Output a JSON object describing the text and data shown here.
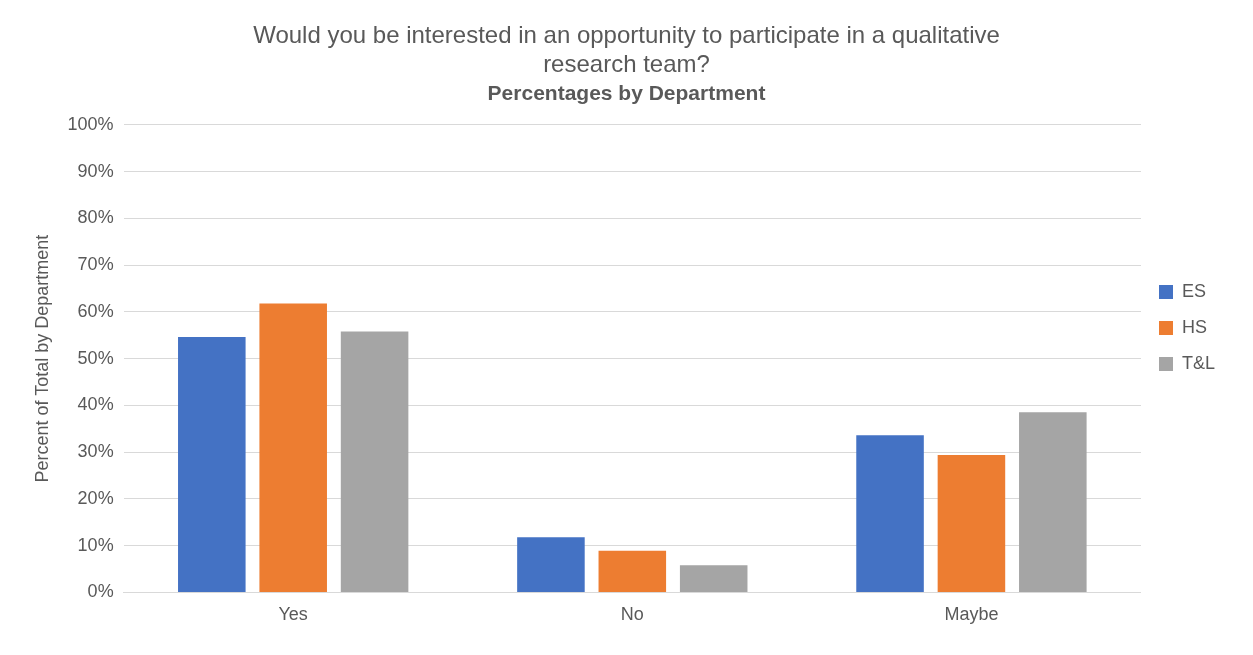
{
  "chart_data": {
    "type": "bar",
    "title": "Would you be interested in an opportunity to participate in a qualitative research team?",
    "subtitle": "Percentages by Department",
    "ylabel": "Percent of Total by Department",
    "categories": [
      "Yes",
      "No",
      "Maybe"
    ],
    "series": [
      {
        "name": "ES",
        "color": "#4472c4",
        "values": [
          54.6,
          11.8,
          33.6
        ]
      },
      {
        "name": "HS",
        "color": "#ed7d31",
        "values": [
          61.8,
          8.9,
          29.4
        ]
      },
      {
        "name": "T&L",
        "color": "#a5a5a5",
        "values": [
          55.8,
          5.8,
          38.5
        ]
      }
    ],
    "ylim": [
      0,
      100
    ],
    "yticks": [
      {
        "value": 0,
        "label": "0%"
      },
      {
        "value": 10,
        "label": "10%"
      },
      {
        "value": 20,
        "label": "20%"
      },
      {
        "value": 30,
        "label": "30%"
      },
      {
        "value": 40,
        "label": "40%"
      },
      {
        "value": 50,
        "label": "50%"
      },
      {
        "value": 60,
        "label": "60%"
      },
      {
        "value": 70,
        "label": "70%"
      },
      {
        "value": 80,
        "label": "80%"
      },
      {
        "value": 90,
        "label": "90%"
      },
      {
        "value": 100,
        "label": "100%"
      }
    ],
    "grid": "y",
    "legend": "right"
  }
}
